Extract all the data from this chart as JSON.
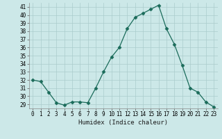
{
  "x": [
    0,
    1,
    2,
    3,
    4,
    5,
    6,
    7,
    8,
    9,
    10,
    11,
    12,
    13,
    14,
    15,
    16,
    17,
    18,
    19,
    20,
    21,
    22,
    23
  ],
  "y": [
    32.0,
    31.8,
    30.5,
    29.2,
    28.9,
    29.3,
    29.3,
    29.2,
    31.0,
    33.0,
    34.8,
    36.0,
    38.3,
    39.7,
    40.2,
    40.7,
    41.2,
    38.3,
    36.4,
    33.8,
    31.0,
    30.5,
    29.3,
    28.7
  ],
  "line_color": "#1a6b5a",
  "marker": "D",
  "marker_size": 2.5,
  "bg_color": "#cce8e8",
  "grid_color": "#aacccc",
  "xlabel": "Humidex (Indice chaleur)",
  "ylim_min": 28.5,
  "ylim_max": 41.5,
  "xlim_min": -0.5,
  "xlim_max": 23.5,
  "yticks": [
    29,
    30,
    31,
    32,
    33,
    34,
    35,
    36,
    37,
    38,
    39,
    40,
    41
  ],
  "xticks": [
    0,
    1,
    2,
    3,
    4,
    5,
    6,
    7,
    8,
    9,
    10,
    11,
    12,
    13,
    14,
    15,
    16,
    17,
    18,
    19,
    20,
    21,
    22,
    23
  ],
  "xtick_labels": [
    "0",
    "1",
    "2",
    "3",
    "4",
    "5",
    "6",
    "7",
    "8",
    "9",
    "10",
    "11",
    "12",
    "13",
    "14",
    "15",
    "16",
    "17",
    "18",
    "19",
    "20",
    "21",
    "22",
    "23"
  ],
  "label_fontsize": 6.5,
  "tick_fontsize": 5.5
}
